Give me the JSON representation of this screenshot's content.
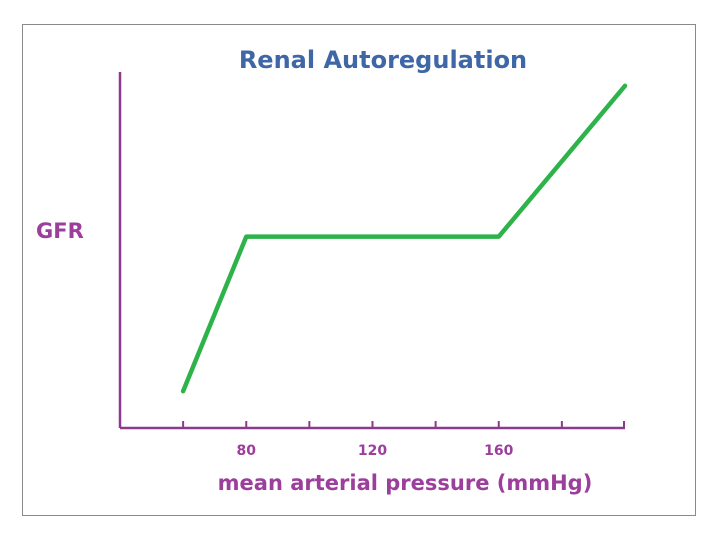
{
  "chart_data": {
    "type": "line",
    "title": "Renal Autoregulation",
    "xlabel": "mean arterial pressure (mmHg)",
    "ylabel": "GFR",
    "xlim": [
      40,
      200
    ],
    "ylim": [
      0,
      10
    ],
    "x_ticks": [
      60,
      80,
      100,
      120,
      140,
      160,
      180,
      200
    ],
    "x_tick_labels": [
      {
        "value": 80,
        "label": "80"
      },
      {
        "value": 120,
        "label": "120"
      },
      {
        "value": 160,
        "label": "160"
      }
    ],
    "grid": false,
    "legend": "none",
    "series": [
      {
        "color": "#2db34a",
        "points": [
          {
            "x": 60,
            "y": 1.0
          },
          {
            "x": 80,
            "y": 5.2
          },
          {
            "x": 160,
            "y": 5.2
          },
          {
            "x": 200,
            "y": 9.3
          }
        ]
      }
    ],
    "colors": {
      "axis": "#8c3a8c",
      "title": "#3f67a8",
      "labels": "#9c3e9c",
      "frame": "#8a8a8a"
    }
  }
}
